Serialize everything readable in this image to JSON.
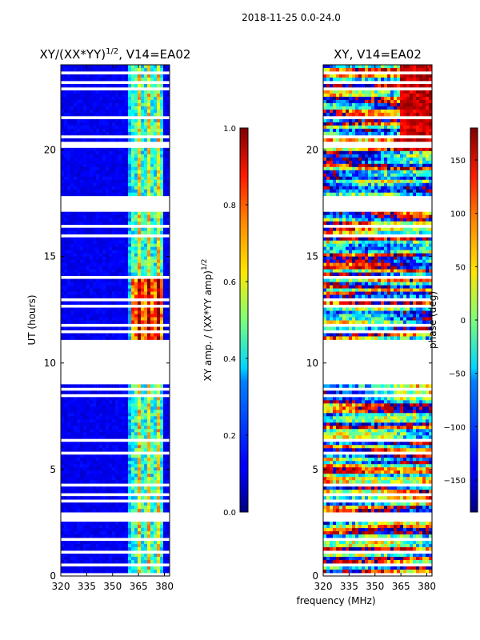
{
  "chart_data": {
    "type": "heatmap",
    "suptitle": "2018-11-25 0.0-24.0",
    "shared_xlabel": "frequency (MHz)",
    "panels": [
      {
        "id": "amp",
        "title": "XY/(XX*YY)",
        "title_sup": "1/2",
        "title_suffix": ", V14=EA02",
        "ylabel": "UT (hours)",
        "xlim": [
          320,
          383
        ],
        "ylim": [
          0,
          24
        ],
        "xticks": [
          320,
          335,
          350,
          365,
          380
        ],
        "yticks": [
          0,
          5,
          10,
          15,
          20
        ],
        "colormap": "jet",
        "colorbar": {
          "label": "XY amp. / (XX*YY amp)",
          "label_sup": "1/2",
          "range": [
            0.0,
            1.0
          ],
          "ticks": [
            "0.0",
            "0.2",
            "0.4",
            "0.6",
            "0.8",
            "1.0"
          ]
        }
      },
      {
        "id": "phase",
        "title": "XY, V14=EA02",
        "ylabel": "",
        "xlim": [
          320,
          383
        ],
        "ylim": [
          0,
          24
        ],
        "xticks": [
          320,
          335,
          350,
          365,
          380
        ],
        "yticks": [
          0,
          5,
          10,
          15,
          20
        ],
        "colormap": "jet",
        "colorbar": {
          "label": "phase (deg)",
          "range": [
            -180,
            180
          ],
          "ticks": [
            "−150",
            "−100",
            "−50",
            "0",
            "50",
            "100",
            "150"
          ]
        }
      }
    ],
    "data_gaps_ut_hours": [
      [
        17.1,
        17.8
      ],
      [
        9.0,
        11.0
      ]
    ],
    "active_band_mhz": [
      360,
      380
    ]
  }
}
